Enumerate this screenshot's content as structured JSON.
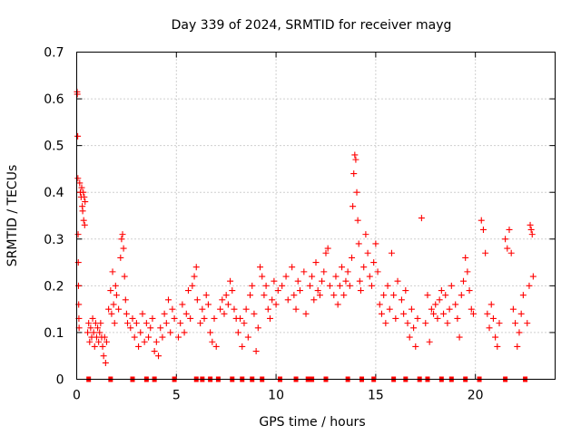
{
  "chart_data": {
    "type": "scatter",
    "title": "Day 339 of 2024, SRMTID for receiver mayg",
    "xlabel": "GPS time / hours",
    "ylabel": "SRMTID / TECUs",
    "xlim": [
      0,
      24
    ],
    "ylim": [
      0,
      0.7
    ],
    "x_ticks": [
      0,
      5,
      10,
      15,
      20
    ],
    "y_ticks": [
      0,
      0.1,
      0.2,
      0.3,
      0.4,
      0.5,
      0.6,
      0.7
    ],
    "x_tick_labels": [
      "0",
      "5",
      "10",
      "15",
      "20"
    ],
    "y_tick_labels": [
      "0",
      "0.1",
      "0.2",
      "0.3",
      "0.4",
      "0.5",
      "0.6",
      "0.7"
    ],
    "grid": true,
    "marker": "+",
    "color": "#ff0000",
    "series": [
      {
        "name": "SRMTID",
        "points": [
          [
            0.02,
            0.615
          ],
          [
            0.03,
            0.61
          ],
          [
            0.05,
            0.52
          ],
          [
            0.06,
            0.43
          ],
          [
            0.07,
            0.31
          ],
          [
            0.08,
            0.25
          ],
          [
            0.09,
            0.2
          ],
          [
            0.1,
            0.16
          ],
          [
            0.11,
            0.13
          ],
          [
            0.12,
            0.11
          ],
          [
            0.15,
            0.42
          ],
          [
            0.18,
            0.4
          ],
          [
            0.22,
            0.39
          ],
          [
            0.25,
            0.41
          ],
          [
            0.28,
            0.37
          ],
          [
            0.3,
            0.36
          ],
          [
            0.33,
            0.4
          ],
          [
            0.35,
            0.34
          ],
          [
            0.38,
            0.39
          ],
          [
            0.4,
            0.33
          ],
          [
            0.42,
            0.38
          ],
          [
            0.55,
            0.1
          ],
          [
            0.6,
            0.12
          ],
          [
            0.65,
            0.08
          ],
          [
            0.7,
            0.11
          ],
          [
            0.75,
            0.09
          ],
          [
            0.8,
            0.13
          ],
          [
            0.85,
            0.1
          ],
          [
            0.9,
            0.07
          ],
          [
            0.95,
            0.12
          ],
          [
            1.0,
            0.09
          ],
          [
            1.05,
            0.11
          ],
          [
            1.1,
            0.08
          ],
          [
            1.15,
            0.1
          ],
          [
            1.2,
            0.12
          ],
          [
            1.25,
            0.09
          ],
          [
            1.3,
            0.07
          ],
          [
            1.35,
            0.05
          ],
          [
            1.4,
            0.09
          ],
          [
            1.45,
            0.035
          ],
          [
            1.5,
            0.08
          ],
          [
            1.6,
            0.15
          ],
          [
            1.7,
            0.19
          ],
          [
            1.75,
            0.14
          ],
          [
            1.8,
            0.23
          ],
          [
            1.85,
            0.16
          ],
          [
            1.9,
            0.12
          ],
          [
            1.95,
            0.2
          ],
          [
            2.0,
            0.18
          ],
          [
            2.1,
            0.15
          ],
          [
            2.2,
            0.26
          ],
          [
            2.25,
            0.3
          ],
          [
            2.3,
            0.31
          ],
          [
            2.35,
            0.28
          ],
          [
            2.4,
            0.22
          ],
          [
            2.45,
            0.17
          ],
          [
            2.5,
            0.14
          ],
          [
            2.55,
            0.12
          ],
          [
            2.7,
            0.11
          ],
          [
            2.8,
            0.13
          ],
          [
            2.9,
            0.09
          ],
          [
            3.0,
            0.12
          ],
          [
            3.1,
            0.07
          ],
          [
            3.2,
            0.1
          ],
          [
            3.3,
            0.14
          ],
          [
            3.4,
            0.08
          ],
          [
            3.5,
            0.12
          ],
          [
            3.6,
            0.09
          ],
          [
            3.7,
            0.11
          ],
          [
            3.8,
            0.13
          ],
          [
            3.9,
            0.06
          ],
          [
            4.0,
            0.08
          ],
          [
            4.1,
            0.05
          ],
          [
            4.2,
            0.11
          ],
          [
            4.3,
            0.09
          ],
          [
            4.4,
            0.14
          ],
          [
            4.5,
            0.12
          ],
          [
            4.6,
            0.17
          ],
          [
            4.7,
            0.1
          ],
          [
            4.8,
            0.15
          ],
          [
            4.9,
            0.13
          ],
          [
            5.1,
            0.09
          ],
          [
            5.2,
            0.12
          ],
          [
            5.3,
            0.16
          ],
          [
            5.4,
            0.1
          ],
          [
            5.5,
            0.14
          ],
          [
            5.6,
            0.19
          ],
          [
            5.7,
            0.13
          ],
          [
            5.8,
            0.2
          ],
          [
            5.9,
            0.22
          ],
          [
            6.0,
            0.24
          ],
          [
            6.05,
            0.17
          ],
          [
            6.2,
            0.12
          ],
          [
            6.3,
            0.15
          ],
          [
            6.4,
            0.13
          ],
          [
            6.5,
            0.18
          ],
          [
            6.6,
            0.16
          ],
          [
            6.7,
            0.1
          ],
          [
            6.8,
            0.08
          ],
          [
            6.9,
            0.13
          ],
          [
            7.0,
            0.07
          ],
          [
            7.2,
            0.15
          ],
          [
            7.3,
            0.17
          ],
          [
            7.4,
            0.14
          ],
          [
            7.5,
            0.18
          ],
          [
            7.6,
            0.16
          ],
          [
            7.7,
            0.21
          ],
          [
            7.8,
            0.19
          ],
          [
            7.9,
            0.15
          ],
          [
            8.0,
            0.13
          ],
          [
            8.1,
            0.1
          ],
          [
            8.2,
            0.13
          ],
          [
            8.3,
            0.07
          ],
          [
            8.4,
            0.12
          ],
          [
            8.5,
            0.15
          ],
          [
            8.6,
            0.09
          ],
          [
            8.7,
            0.18
          ],
          [
            8.8,
            0.2
          ],
          [
            8.9,
            0.14
          ],
          [
            9.0,
            0.06
          ],
          [
            9.1,
            0.11
          ],
          [
            9.2,
            0.24
          ],
          [
            9.3,
            0.22
          ],
          [
            9.4,
            0.18
          ],
          [
            9.5,
            0.2
          ],
          [
            9.6,
            0.15
          ],
          [
            9.7,
            0.13
          ],
          [
            9.8,
            0.17
          ],
          [
            9.9,
            0.21
          ],
          [
            10.0,
            0.16
          ],
          [
            10.1,
            0.19
          ],
          [
            10.3,
            0.2
          ],
          [
            10.5,
            0.22
          ],
          [
            10.6,
            0.17
          ],
          [
            10.8,
            0.24
          ],
          [
            10.9,
            0.18
          ],
          [
            11.0,
            0.15
          ],
          [
            11.1,
            0.21
          ],
          [
            11.2,
            0.19
          ],
          [
            11.4,
            0.23
          ],
          [
            11.5,
            0.14
          ],
          [
            11.7,
            0.2
          ],
          [
            11.8,
            0.22
          ],
          [
            11.9,
            0.17
          ],
          [
            12.0,
            0.25
          ],
          [
            12.1,
            0.19
          ],
          [
            12.2,
            0.18
          ],
          [
            12.3,
            0.21
          ],
          [
            12.4,
            0.23
          ],
          [
            12.5,
            0.27
          ],
          [
            12.6,
            0.28
          ],
          [
            12.7,
            0.2
          ],
          [
            12.9,
            0.18
          ],
          [
            13.0,
            0.22
          ],
          [
            13.1,
            0.16
          ],
          [
            13.2,
            0.2
          ],
          [
            13.3,
            0.24
          ],
          [
            13.4,
            0.18
          ],
          [
            13.5,
            0.21
          ],
          [
            13.6,
            0.23
          ],
          [
            13.7,
            0.2
          ],
          [
            13.8,
            0.26
          ],
          [
            13.85,
            0.37
          ],
          [
            13.9,
            0.44
          ],
          [
            13.95,
            0.48
          ],
          [
            14.0,
            0.47
          ],
          [
            14.05,
            0.4
          ],
          [
            14.1,
            0.34
          ],
          [
            14.15,
            0.29
          ],
          [
            14.2,
            0.21
          ],
          [
            14.25,
            0.19
          ],
          [
            14.4,
            0.24
          ],
          [
            14.5,
            0.31
          ],
          [
            14.6,
            0.27
          ],
          [
            14.7,
            0.22
          ],
          [
            14.8,
            0.2
          ],
          [
            14.9,
            0.25
          ],
          [
            15.0,
            0.29
          ],
          [
            15.1,
            0.23
          ],
          [
            15.2,
            0.16
          ],
          [
            15.3,
            0.14
          ],
          [
            15.4,
            0.18
          ],
          [
            15.5,
            0.12
          ],
          [
            15.6,
            0.2
          ],
          [
            15.7,
            0.15
          ],
          [
            15.8,
            0.27
          ],
          [
            15.9,
            0.18
          ],
          [
            16.0,
            0.13
          ],
          [
            16.1,
            0.21
          ],
          [
            16.3,
            0.17
          ],
          [
            16.4,
            0.14
          ],
          [
            16.5,
            0.19
          ],
          [
            16.6,
            0.12
          ],
          [
            16.7,
            0.09
          ],
          [
            16.8,
            0.15
          ],
          [
            16.9,
            0.11
          ],
          [
            17.0,
            0.07
          ],
          [
            17.1,
            0.13
          ],
          [
            17.3,
            0.345
          ],
          [
            17.5,
            0.12
          ],
          [
            17.6,
            0.18
          ],
          [
            17.7,
            0.08
          ],
          [
            17.8,
            0.15
          ],
          [
            17.9,
            0.14
          ],
          [
            18.0,
            0.16
          ],
          [
            18.1,
            0.13
          ],
          [
            18.2,
            0.17
          ],
          [
            18.3,
            0.19
          ],
          [
            18.4,
            0.14
          ],
          [
            18.5,
            0.18
          ],
          [
            18.6,
            0.12
          ],
          [
            18.7,
            0.15
          ],
          [
            18.8,
            0.2
          ],
          [
            19.0,
            0.16
          ],
          [
            19.1,
            0.13
          ],
          [
            19.2,
            0.09
          ],
          [
            19.3,
            0.18
          ],
          [
            19.4,
            0.21
          ],
          [
            19.5,
            0.26
          ],
          [
            19.6,
            0.23
          ],
          [
            19.7,
            0.19
          ],
          [
            19.8,
            0.15
          ],
          [
            19.9,
            0.14
          ],
          [
            20.3,
            0.34
          ],
          [
            20.4,
            0.32
          ],
          [
            20.5,
            0.27
          ],
          [
            20.6,
            0.14
          ],
          [
            20.7,
            0.11
          ],
          [
            20.8,
            0.16
          ],
          [
            20.9,
            0.13
          ],
          [
            21.0,
            0.09
          ],
          [
            21.1,
            0.07
          ],
          [
            21.2,
            0.12
          ],
          [
            21.5,
            0.3
          ],
          [
            21.6,
            0.28
          ],
          [
            21.7,
            0.32
          ],
          [
            21.8,
            0.27
          ],
          [
            21.9,
            0.15
          ],
          [
            22.0,
            0.12
          ],
          [
            22.1,
            0.07
          ],
          [
            22.2,
            0.1
          ],
          [
            22.3,
            0.14
          ],
          [
            22.4,
            0.18
          ],
          [
            22.6,
            0.12
          ],
          [
            22.7,
            0.2
          ],
          [
            22.75,
            0.33
          ],
          [
            22.8,
            0.32
          ],
          [
            22.85,
            0.31
          ],
          [
            22.9,
            0.22
          ]
        ]
      }
    ],
    "zero_markers_x": [
      0.6,
      1.7,
      2.8,
      3.5,
      3.9,
      4.9,
      6.0,
      6.3,
      6.7,
      7.1,
      7.8,
      8.3,
      8.8,
      9.3,
      10.2,
      11.0,
      11.6,
      11.8,
      12.5,
      13.6,
      14.3,
      14.9,
      15.9,
      16.5,
      17.2,
      17.6,
      18.3,
      18.8,
      19.5,
      20.2,
      21.5,
      22.5
    ]
  }
}
